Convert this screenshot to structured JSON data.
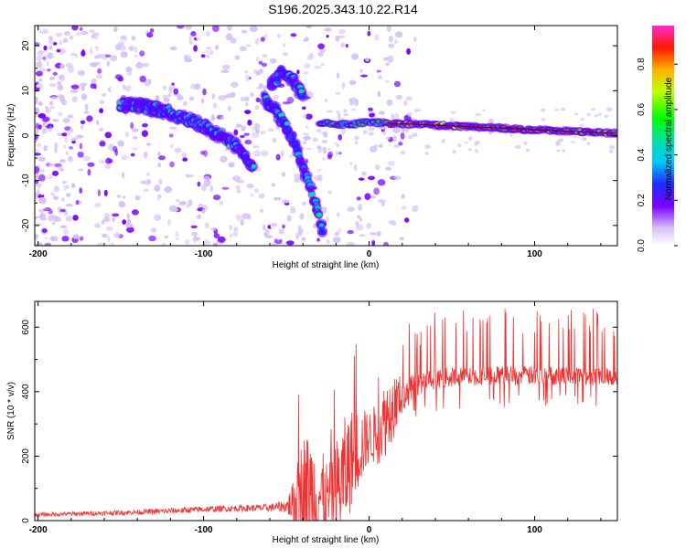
{
  "title": "S196.2025.343.10.22.R14",
  "chart_data": [
    {
      "type": "heatmap",
      "xlabel": "Height of straight line (km)",
      "ylabel": "Frequency (Hz)",
      "xlim": [
        -202,
        150
      ],
      "ylim": [
        -24.5,
        24.5
      ],
      "xticks": [
        -200,
        -100,
        0,
        100
      ],
      "yticks": [
        -20,
        -10,
        0,
        10,
        20
      ],
      "xtick_labels": [
        "-200",
        "-100",
        "0",
        "100"
      ],
      "ytick_labels": [
        "-20",
        "-10",
        "0",
        "10",
        "20"
      ],
      "colorbar": {
        "label": "Normalized spectral amplitude",
        "range": [
          0.0,
          0.97
        ],
        "ticks": [
          0.0,
          0.2,
          0.4,
          0.6,
          0.8
        ],
        "tick_labels": [
          "0.0",
          "0.2",
          "0.4",
          "0.6",
          "0.8"
        ]
      },
      "ridges": [
        {
          "x": [
            -150,
            -135,
            -120,
            -105,
            -95,
            -85,
            -75,
            -70
          ],
          "y": [
            7,
            6.5,
            5,
            3,
            1,
            -1,
            -4,
            -7.5
          ]
        },
        {
          "x": [
            -63,
            -57,
            -52,
            -47,
            -42,
            -37,
            -32,
            -28
          ],
          "y": [
            8,
            6,
            3,
            0,
            -5,
            -10,
            -16,
            -21
          ]
        },
        {
          "x": [
            -60,
            -53,
            -46,
            -40
          ],
          "y": [
            11,
            14,
            12,
            9
          ]
        },
        {
          "x": [
            -30,
            -20,
            -10,
            0,
            10,
            30,
            60,
            90,
            120,
            150
          ],
          "y": [
            3,
            2.5,
            2.5,
            3,
            2.8,
            2.5,
            2,
            1.5,
            1,
            0.5
          ]
        }
      ]
    },
    {
      "type": "line",
      "xlabel": "Height of straight line (km)",
      "ylabel": "SNR (10 * v/v)",
      "xlim": [
        -202,
        150
      ],
      "ylim": [
        0,
        680
      ],
      "xticks": [
        -200,
        -100,
        0,
        100
      ],
      "yticks": [
        0,
        200,
        400,
        600
      ],
      "xtick_labels": [
        "-200",
        "-100",
        "0",
        "100"
      ],
      "ytick_labels": [
        "0",
        "200",
        "400",
        "600"
      ],
      "color": "#ee3333",
      "envelope": {
        "x": [
          -202,
          -170,
          -140,
          -120,
          -100,
          -80,
          -60,
          -50,
          -45,
          -40,
          -35,
          -30,
          -25,
          -20,
          -15,
          -10,
          -5,
          0,
          5,
          10,
          15,
          20,
          30,
          40,
          50,
          70,
          90,
          110,
          130,
          150
        ],
        "base": [
          18,
          22,
          26,
          30,
          35,
          38,
          40,
          45,
          55,
          80,
          90,
          80,
          60,
          90,
          140,
          200,
          230,
          260,
          270,
          320,
          360,
          390,
          420,
          440,
          445,
          450,
          450,
          450,
          450,
          450
        ],
        "spread": [
          6,
          7,
          8,
          9,
          10,
          10,
          12,
          20,
          80,
          200,
          180,
          150,
          120,
          160,
          180,
          150,
          120,
          80,
          100,
          120,
          100,
          60,
          40,
          30,
          30,
          30,
          30,
          30,
          30,
          30
        ]
      }
    }
  ]
}
